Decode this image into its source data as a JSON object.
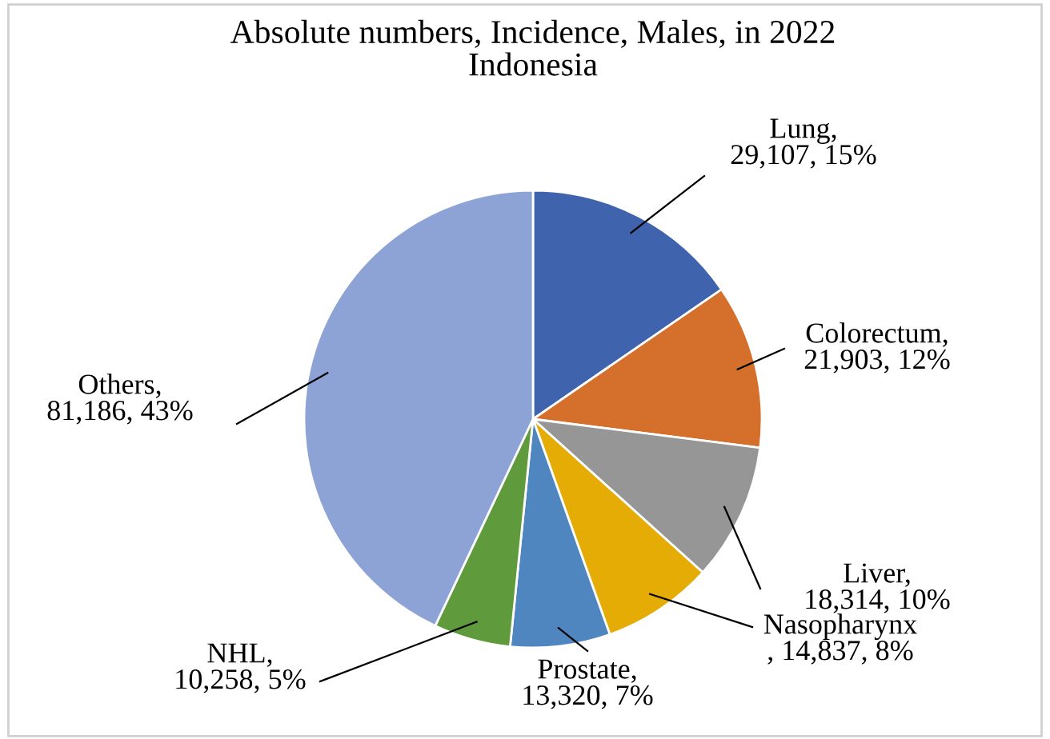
{
  "chart_data": {
    "type": "pie",
    "title": "Absolute numbers, Incidence, Males, in 2022\nIndonesia",
    "categories": [
      "Lung",
      "Colorectum",
      "Liver",
      "Nasopharynx",
      "Prostate",
      "NHL",
      "Others"
    ],
    "values": [
      29107,
      21903,
      18314,
      14837,
      13320,
      10258,
      81186
    ],
    "colors": [
      "#3f64ad",
      "#d4702b",
      "#969696",
      "#e5ac06",
      "#4f86c0",
      "#5f9a3c",
      "#8ea3d5"
    ],
    "value_labels": [
      ",\n29,107, 15%",
      ",\n21,903, 12%",
      ",\n18,314, 10%",
      "\n, 14,837, 8%",
      ",\n13,320, 7%",
      ",\n10,258, 5%",
      ",\n81,186, 43%"
    ],
    "legend": false
  }
}
